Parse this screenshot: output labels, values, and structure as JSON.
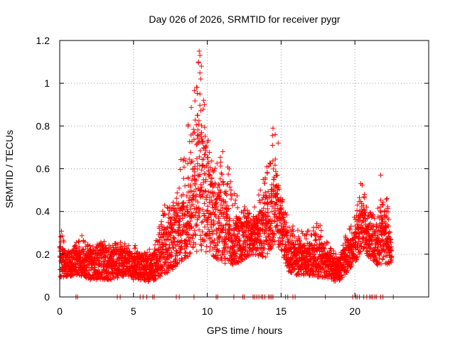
{
  "chart_data": {
    "type": "scatter",
    "title": "Day 026 of 2026, SRMTID for receiver pygr",
    "xlabel": "GPS time / hours",
    "ylabel": "SRMTID / TECUs",
    "xlim": [
      0,
      25
    ],
    "ylim": [
      0,
      1.2
    ],
    "x_ticks": [
      0,
      5,
      10,
      15,
      20
    ],
    "x_tick_labels": [
      "0",
      "5",
      "10",
      "15",
      "20"
    ],
    "y_ticks": [
      0,
      0.2,
      0.4,
      0.6,
      0.8,
      1.0,
      1.2
    ],
    "y_tick_labels": [
      "0",
      "0.2",
      "0.4",
      "0.6",
      "0.8",
      "1",
      "1.2"
    ],
    "grid": true,
    "marker": "plus",
    "color": "#ff0000",
    "series": [
      {
        "name": "SRMTID",
        "note": "Approximate envelope of the scatter: [hour, typical_low, typical_high, peak] for half-hour bins, plus isolated spikes.",
        "envelope": [
          [
            0.0,
            0.09,
            0.24,
            0.36
          ],
          [
            0.5,
            0.09,
            0.2,
            0.22
          ],
          [
            1.0,
            0.1,
            0.21,
            0.24
          ],
          [
            1.5,
            0.09,
            0.22,
            0.3
          ],
          [
            2.0,
            0.08,
            0.21,
            0.24
          ],
          [
            2.5,
            0.08,
            0.21,
            0.25
          ],
          [
            3.0,
            0.08,
            0.22,
            0.26
          ],
          [
            3.5,
            0.08,
            0.21,
            0.24
          ],
          [
            4.0,
            0.09,
            0.22,
            0.27
          ],
          [
            4.5,
            0.1,
            0.22,
            0.25
          ],
          [
            5.0,
            0.08,
            0.19,
            0.25
          ],
          [
            5.5,
            0.08,
            0.18,
            0.21
          ],
          [
            6.0,
            0.07,
            0.18,
            0.22
          ],
          [
            6.5,
            0.08,
            0.21,
            0.26
          ],
          [
            7.0,
            0.1,
            0.32,
            0.42
          ],
          [
            7.5,
            0.12,
            0.35,
            0.47
          ],
          [
            8.0,
            0.14,
            0.4,
            0.56
          ],
          [
            8.5,
            0.17,
            0.45,
            0.8
          ],
          [
            9.0,
            0.2,
            0.6,
            0.95
          ],
          [
            9.5,
            0.22,
            0.8,
            1.15
          ],
          [
            10.0,
            0.2,
            0.65,
            0.76
          ],
          [
            10.5,
            0.18,
            0.45,
            0.62
          ],
          [
            11.0,
            0.16,
            0.48,
            0.68
          ],
          [
            11.5,
            0.15,
            0.4,
            0.6
          ],
          [
            12.0,
            0.15,
            0.36,
            0.48
          ],
          [
            12.5,
            0.17,
            0.38,
            0.43
          ],
          [
            13.0,
            0.2,
            0.34,
            0.38
          ],
          [
            14.0,
            0.18,
            0.45,
            0.6
          ],
          [
            14.5,
            0.25,
            0.55,
            0.79
          ],
          [
            15.0,
            0.22,
            0.42,
            0.48
          ],
          [
            15.5,
            0.12,
            0.26,
            0.36
          ],
          [
            16.0,
            0.1,
            0.24,
            0.32
          ],
          [
            16.5,
            0.1,
            0.24,
            0.34
          ],
          [
            17.0,
            0.1,
            0.25,
            0.33
          ],
          [
            17.5,
            0.09,
            0.24,
            0.35
          ],
          [
            18.0,
            0.09,
            0.22,
            0.31
          ],
          [
            18.5,
            0.07,
            0.18,
            0.23
          ],
          [
            19.0,
            0.08,
            0.18,
            0.22
          ],
          [
            19.5,
            0.12,
            0.25,
            0.32
          ],
          [
            20.0,
            0.16,
            0.3,
            0.38
          ],
          [
            20.5,
            0.22,
            0.42,
            0.53
          ],
          [
            21.0,
            0.18,
            0.33,
            0.4
          ],
          [
            21.5,
            0.15,
            0.3,
            0.4
          ],
          [
            22.0,
            0.15,
            0.4,
            0.57
          ],
          [
            22.5,
            0.15,
            0.24,
            0.27
          ]
        ],
        "spikes": [
          [
            9.45,
            1.15
          ],
          [
            9.5,
            1.13
          ],
          [
            9.4,
            1.1
          ],
          [
            9.6,
            1.08
          ],
          [
            9.55,
            1.02
          ],
          [
            9.3,
            0.98
          ],
          [
            9.5,
            0.95
          ],
          [
            9.75,
            0.92
          ],
          [
            9.8,
            0.9
          ],
          [
            9.35,
            0.85
          ],
          [
            8.7,
            0.8
          ],
          [
            14.45,
            0.79
          ],
          [
            14.6,
            0.76
          ],
          [
            14.8,
            0.72
          ],
          [
            11.05,
            0.68
          ],
          [
            21.75,
            0.57
          ],
          [
            20.4,
            0.53
          ]
        ],
        "zero_points": [
          1.1,
          1.2,
          3.9,
          4.1,
          5.45,
          5.65,
          5.9,
          6.3,
          6.4,
          7.9,
          8.1,
          9.1,
          10.6,
          10.7,
          11.8,
          12.4,
          12.5,
          13.1,
          13.2,
          13.35,
          13.5,
          13.65,
          13.75,
          13.9,
          14.15,
          14.25,
          14.35,
          14.45,
          15.3,
          15.45,
          15.8,
          15.95,
          18.0,
          19.85,
          20.05,
          20.15,
          20.3,
          20.6,
          20.8,
          21.0,
          21.1,
          21.2,
          21.35,
          21.45,
          21.75,
          21.9,
          22.6
        ]
      }
    ]
  }
}
